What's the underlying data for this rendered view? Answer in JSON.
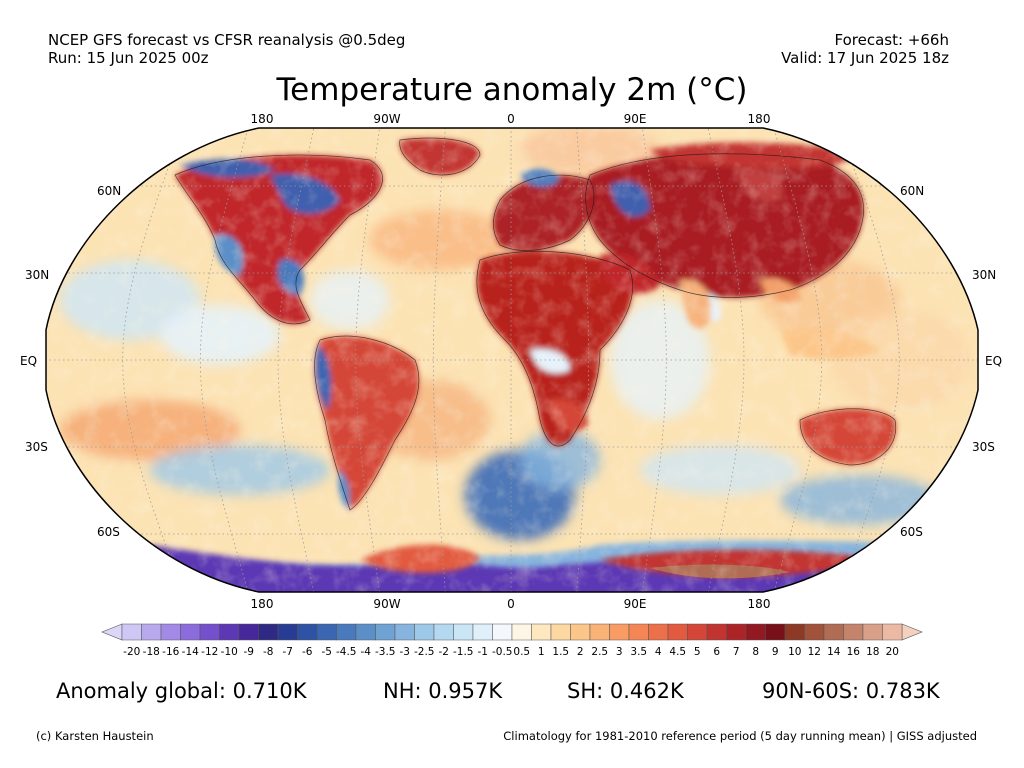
{
  "header": {
    "left_line1": "NCEP GFS forecast vs CFSR reanalysis @0.5deg",
    "left_line2": "Run: 15 Jun 2025 00z",
    "right_line1": "Forecast: +66h",
    "right_line2": "Valid: 17 Jun 2025 18z"
  },
  "title": "Temperature anomaly 2m (°C)",
  "map": {
    "projection": "Robinson",
    "lon_labels_top": [
      "180",
      "90W",
      "0",
      "90E",
      "180"
    ],
    "lon_labels_bottom": [
      "180",
      "90W",
      "0",
      "90E",
      "180"
    ],
    "lat_labels": [
      "60N",
      "30N",
      "EQ",
      "30S",
      "60S"
    ],
    "gridlines": "dotted",
    "ocean_base_color": "#fce3b4",
    "warm_color": "#c0282a",
    "cold_color": "#3f5fae",
    "polar_cold_color": "#5a2fa0"
  },
  "colorbar": {
    "ticks": [
      "-20",
      "-18",
      "-16",
      "-14",
      "-12",
      "-10",
      "-9",
      "-8",
      "-7",
      "-6",
      "-5",
      "-4.5",
      "-4",
      "-3.5",
      "-3",
      "-2.5",
      "-2",
      "-1.5",
      "-1",
      "-0.5",
      "0.5",
      "1",
      "1.5",
      "2",
      "2.5",
      "3",
      "3.5",
      "4",
      "4.5",
      "5",
      "6",
      "7",
      "8",
      "9",
      "10",
      "12",
      "14",
      "16",
      "18",
      "20"
    ],
    "colors": [
      "#cfc8f4",
      "#b8a8ee",
      "#a28ae6",
      "#8c6cdc",
      "#7450cc",
      "#5c38b4",
      "#46289a",
      "#2e2a84",
      "#283c94",
      "#2e52a4",
      "#3a66b2",
      "#4a7abe",
      "#5c8ec8",
      "#70a2d4",
      "#86b4de",
      "#9ec8e8",
      "#b4d8f0",
      "#cae6f6",
      "#e0f0fa",
      "#f4f8fc",
      "#fdf6e6",
      "#fde8c0",
      "#fdd8a2",
      "#fcc68a",
      "#fbb276",
      "#f99c64",
      "#f48656",
      "#ec704a",
      "#e25a40",
      "#d44638",
      "#c23430",
      "#ac2428",
      "#921822",
      "#78101a",
      "#8c3a26",
      "#a0523a",
      "#b06c54",
      "#c4846c",
      "#d8a088",
      "#ecbaa4"
    ],
    "extend_low_color": "#dcd6f8",
    "extend_high_color": "#f4d0be"
  },
  "stats": {
    "global": "Anomaly global: 0.710K",
    "nh": "NH: 0.957K",
    "sh": "SH: 0.462K",
    "arctic": "90N-60S: 0.783K"
  },
  "footer": {
    "left": "(c) Karsten Haustein",
    "right": "Climatology for 1981-2010 reference period (5 day running mean) | GISS adjusted"
  }
}
